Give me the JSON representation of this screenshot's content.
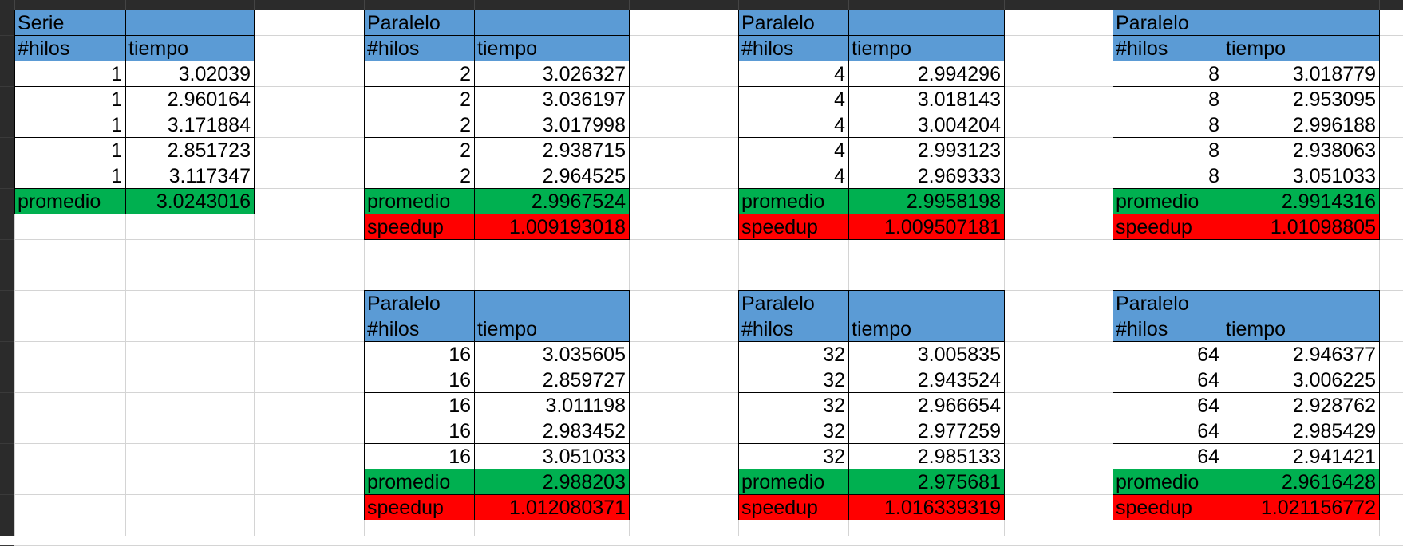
{
  "sheet": {
    "header_color": "#5b9bd5",
    "promedio_color": "#00b050",
    "speedup_color": "#ff0000",
    "tables": [
      {
        "title": "Serie",
        "col_hilos": "#hilos",
        "col_tiempo": "tiempo",
        "rows": [
          {
            "hilos": "1",
            "tiempo": "3.02039"
          },
          {
            "hilos": "1",
            "tiempo": "2.960164"
          },
          {
            "hilos": "1",
            "tiempo": "3.171884"
          },
          {
            "hilos": "1",
            "tiempo": "2.851723"
          },
          {
            "hilos": "1",
            "tiempo": "3.117347"
          }
        ],
        "promedio_label": "promedio",
        "promedio": "3.0243016"
      },
      {
        "title": "Paralelo",
        "col_hilos": "#hilos",
        "col_tiempo": "tiempo",
        "rows": [
          {
            "hilos": "2",
            "tiempo": "3.026327"
          },
          {
            "hilos": "2",
            "tiempo": "3.036197"
          },
          {
            "hilos": "2",
            "tiempo": "3.017998"
          },
          {
            "hilos": "2",
            "tiempo": "2.938715"
          },
          {
            "hilos": "2",
            "tiempo": "2.964525"
          }
        ],
        "promedio_label": "promedio",
        "promedio": "2.9967524",
        "speedup_label": "speedup",
        "speedup": "1.009193018"
      },
      {
        "title": "Paralelo",
        "col_hilos": "#hilos",
        "col_tiempo": "tiempo",
        "rows": [
          {
            "hilos": "4",
            "tiempo": "2.994296"
          },
          {
            "hilos": "4",
            "tiempo": "3.018143"
          },
          {
            "hilos": "4",
            "tiempo": "3.004204"
          },
          {
            "hilos": "4",
            "tiempo": "2.993123"
          },
          {
            "hilos": "4",
            "tiempo": "2.969333"
          }
        ],
        "promedio_label": "promedio",
        "promedio": "2.9958198",
        "speedup_label": "speedup",
        "speedup": "1.009507181"
      },
      {
        "title": "Paralelo",
        "col_hilos": "#hilos",
        "col_tiempo": "tiempo",
        "rows": [
          {
            "hilos": "8",
            "tiempo": "3.018779"
          },
          {
            "hilos": "8",
            "tiempo": "2.953095"
          },
          {
            "hilos": "8",
            "tiempo": "2.996188"
          },
          {
            "hilos": "8",
            "tiempo": "2.938063"
          },
          {
            "hilos": "8",
            "tiempo": "3.051033"
          }
        ],
        "promedio_label": "promedio",
        "promedio": "2.9914316",
        "speedup_label": "speedup",
        "speedup": "1.01098805"
      },
      {
        "title": "Paralelo",
        "col_hilos": "#hilos",
        "col_tiempo": "tiempo",
        "rows": [
          {
            "hilos": "16",
            "tiempo": "3.035605"
          },
          {
            "hilos": "16",
            "tiempo": "2.859727"
          },
          {
            "hilos": "16",
            "tiempo": "3.011198"
          },
          {
            "hilos": "16",
            "tiempo": "2.983452"
          },
          {
            "hilos": "16",
            "tiempo": "3.051033"
          }
        ],
        "promedio_label": "promedio",
        "promedio": "2.988203",
        "speedup_label": "speedup",
        "speedup": "1.012080371"
      },
      {
        "title": "Paralelo",
        "col_hilos": "#hilos",
        "col_tiempo": "tiempo",
        "rows": [
          {
            "hilos": "32",
            "tiempo": "3.005835"
          },
          {
            "hilos": "32",
            "tiempo": "2.943524"
          },
          {
            "hilos": "32",
            "tiempo": "2.966654"
          },
          {
            "hilos": "32",
            "tiempo": "2.977259"
          },
          {
            "hilos": "32",
            "tiempo": "2.985133"
          }
        ],
        "promedio_label": "promedio",
        "promedio": "2.975681",
        "speedup_label": "speedup",
        "speedup": "1.016339319"
      },
      {
        "title": "Paralelo",
        "col_hilos": "#hilos",
        "col_tiempo": "tiempo",
        "rows": [
          {
            "hilos": "64",
            "tiempo": "2.946377"
          },
          {
            "hilos": "64",
            "tiempo": "3.006225"
          },
          {
            "hilos": "64",
            "tiempo": "2.928762"
          },
          {
            "hilos": "64",
            "tiempo": "2.985429"
          },
          {
            "hilos": "64",
            "tiempo": "2.941421"
          }
        ],
        "promedio_label": "promedio",
        "promedio": "2.9616428",
        "speedup_label": "speedup",
        "speedup": "1.021156772"
      }
    ]
  }
}
